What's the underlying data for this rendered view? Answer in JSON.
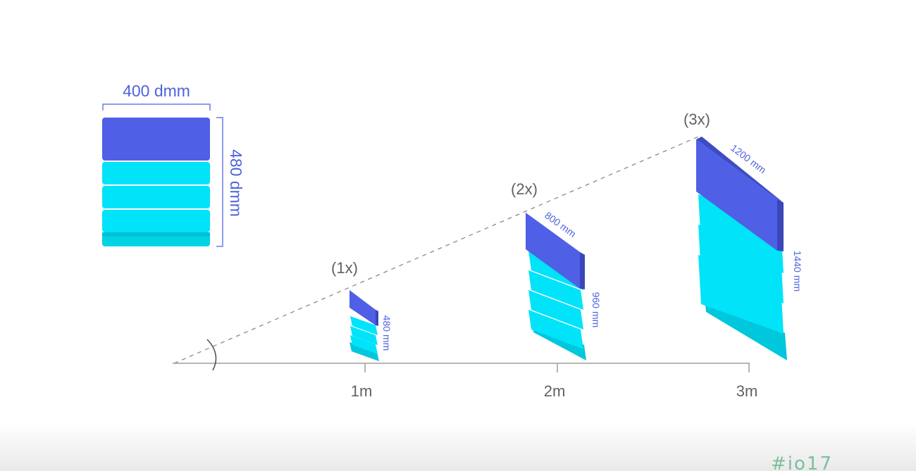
{
  "reference_card": {
    "width_label": "400 dmm",
    "height_label": "480 dmm"
  },
  "cards": [
    {
      "id": "1x",
      "scale_label": "(1x)",
      "width_label": "",
      "height_label": "480 mm",
      "distance_label": "1m"
    },
    {
      "id": "2x",
      "scale_label": "(2x)",
      "width_label": "800 mm",
      "height_label": "960 mm",
      "distance_label": "2m"
    },
    {
      "id": "3x",
      "scale_label": "(3x)",
      "width_label": "1200 mm",
      "height_label": "1440 mm",
      "distance_label": "3m"
    }
  ],
  "branding": {
    "text": "#io17"
  },
  "colors": {
    "header_blue": "#4f5fe6",
    "header_blue_side": "#3a47b8",
    "body_cyan": "#00e3f9",
    "body_cyan_side": "#00b9cc",
    "label_accent": "#4f63df",
    "axis_grey": "#9e9e9e"
  }
}
